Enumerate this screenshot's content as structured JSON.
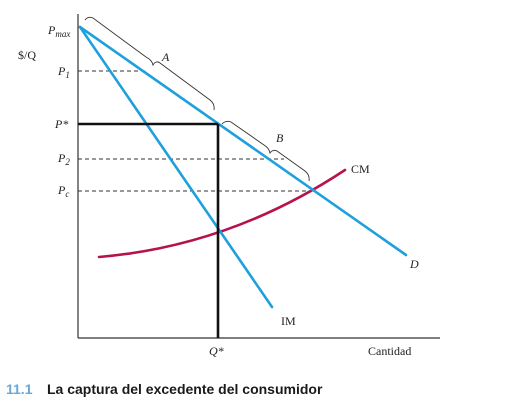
{
  "figure": {
    "y_axis_label": "$/Q",
    "x_axis_label": "Cantidad",
    "price_labels": {
      "pmax_main": "P",
      "pmax_sub": "max",
      "p1_main": "P",
      "p1_sub": "1",
      "pstar": "P*",
      "p2_main": "P",
      "p2_sub": "2",
      "pc_main": "P",
      "pc_sub": "c"
    },
    "quantity_label": "Q*",
    "curve_labels": {
      "demand": "D",
      "marginal_revenue": "IM",
      "marginal_cost": "CM"
    },
    "area_labels": {
      "a": "A",
      "b": "B"
    },
    "colors": {
      "demand": "#1ea0dc",
      "marginal_revenue": "#1ea0dc",
      "marginal_cost": "#b5124e",
      "optimum_lines": "#111111",
      "dashed_guides": "#333333",
      "axes": "#333333"
    }
  },
  "caption": {
    "number": "11.1",
    "title": "La captura del excedente del consumidor"
  }
}
